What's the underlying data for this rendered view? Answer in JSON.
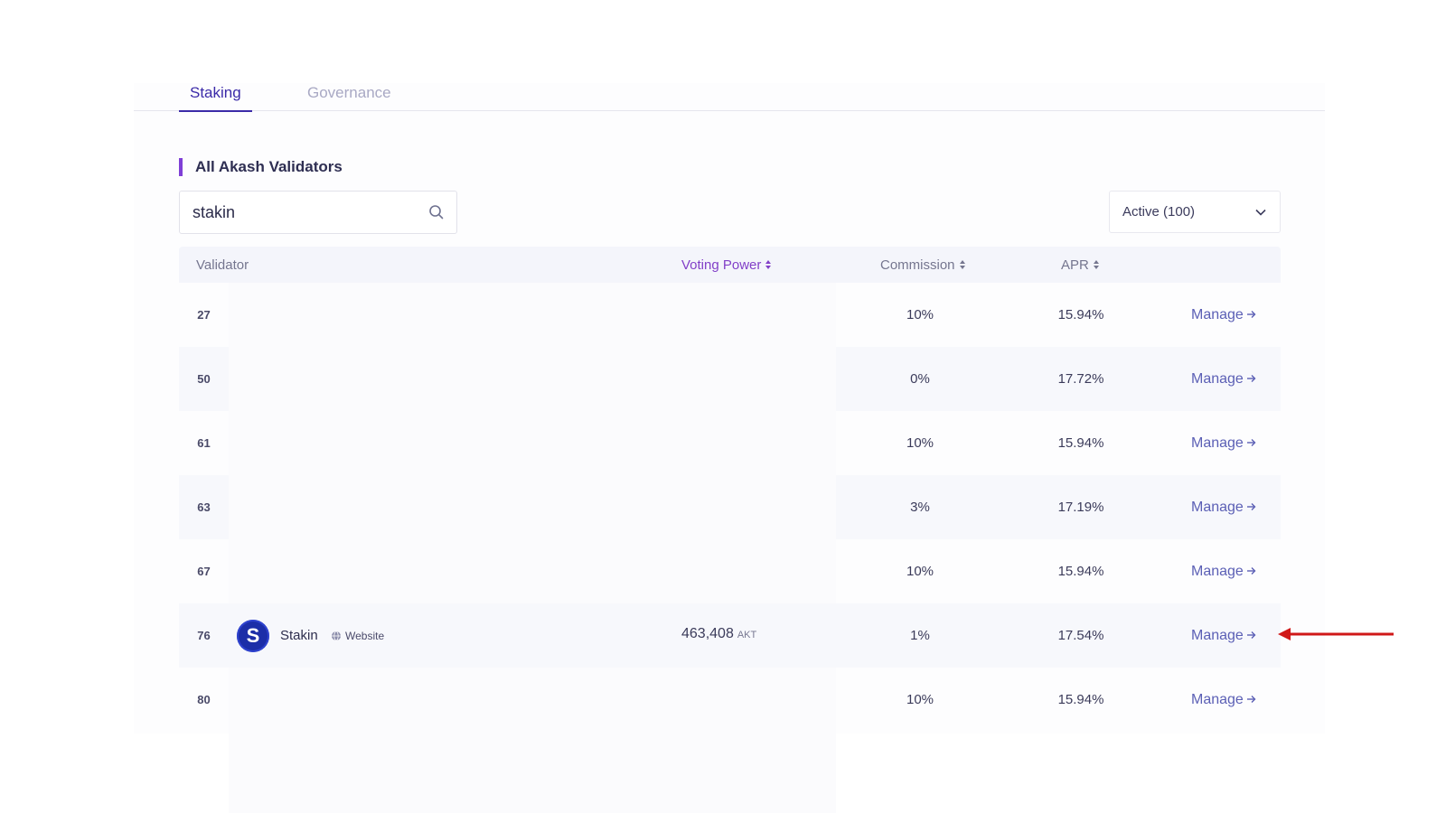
{
  "tabs": [
    {
      "label": "Staking",
      "active": true
    },
    {
      "label": "Governance",
      "active": false
    }
  ],
  "section_title": "All Akash Validators",
  "search": {
    "value": "stakin",
    "placeholder": ""
  },
  "filter": {
    "label": "Active (100)"
  },
  "table": {
    "headers": {
      "validator": "Validator",
      "voting_power": "Voting Power",
      "commission": "Commission",
      "apr": "APR"
    },
    "rows": [
      {
        "rank": "27",
        "commission": "10%",
        "apr": "15.94%",
        "action": "Manage"
      },
      {
        "rank": "50",
        "commission": "0%",
        "apr": "17.72%",
        "action": "Manage"
      },
      {
        "rank": "61",
        "commission": "10%",
        "apr": "15.94%",
        "action": "Manage"
      },
      {
        "rank": "63",
        "commission": "3%",
        "apr": "17.19%",
        "action": "Manage"
      },
      {
        "rank": "67",
        "commission": "10%",
        "apr": "15.94%",
        "action": "Manage"
      },
      {
        "rank": "76",
        "name": "Stakin",
        "avatar_letter": "S",
        "website": "Website",
        "voting_power": "463,408",
        "voting_unit": "AKT",
        "commission": "1%",
        "apr": "17.54%",
        "action": "Manage"
      },
      {
        "rank": "80",
        "commission": "10%",
        "apr": "15.94%",
        "action": "Manage"
      }
    ]
  },
  "colors": {
    "accent": "#3b2aa8",
    "sort_active": "#8240c8",
    "annotation_arrow": "#d01818",
    "link": "#5b5fb5"
  }
}
